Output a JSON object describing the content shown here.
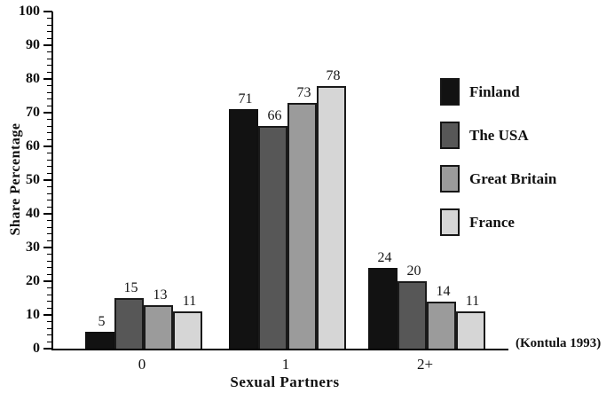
{
  "chart_data": {
    "type": "bar",
    "categories": [
      "0",
      "1",
      "2+"
    ],
    "series": [
      {
        "name": "Finland",
        "color": "#121212",
        "values": [
          5,
          71,
          24
        ]
      },
      {
        "name": "The USA",
        "color": "#575757",
        "values": [
          15,
          66,
          20
        ]
      },
      {
        "name": "Great Britain",
        "color": "#9b9b9b",
        "values": [
          13,
          73,
          14
        ]
      },
      {
        "name": "France",
        "color": "#d6d6d6",
        "values": [
          11,
          78,
          11
        ]
      }
    ],
    "title": "",
    "xlabel": "Sexual Partners",
    "ylabel": "Share Percentage",
    "ylim": [
      0,
      100
    ],
    "y_major_step": 10,
    "y_minor_step": 2,
    "y_tick_labels": [
      "0",
      "10",
      "20",
      "30",
      "40",
      "50",
      "60",
      "70",
      "80",
      "90",
      "100"
    ],
    "grid": false,
    "legend_position": "right",
    "legend_entries": [
      "Finland",
      "The USA",
      "Great Britain",
      "France"
    ],
    "annotation": "(Kontula 1993)",
    "axis_color": "#000000",
    "text_color": "#111111"
  }
}
